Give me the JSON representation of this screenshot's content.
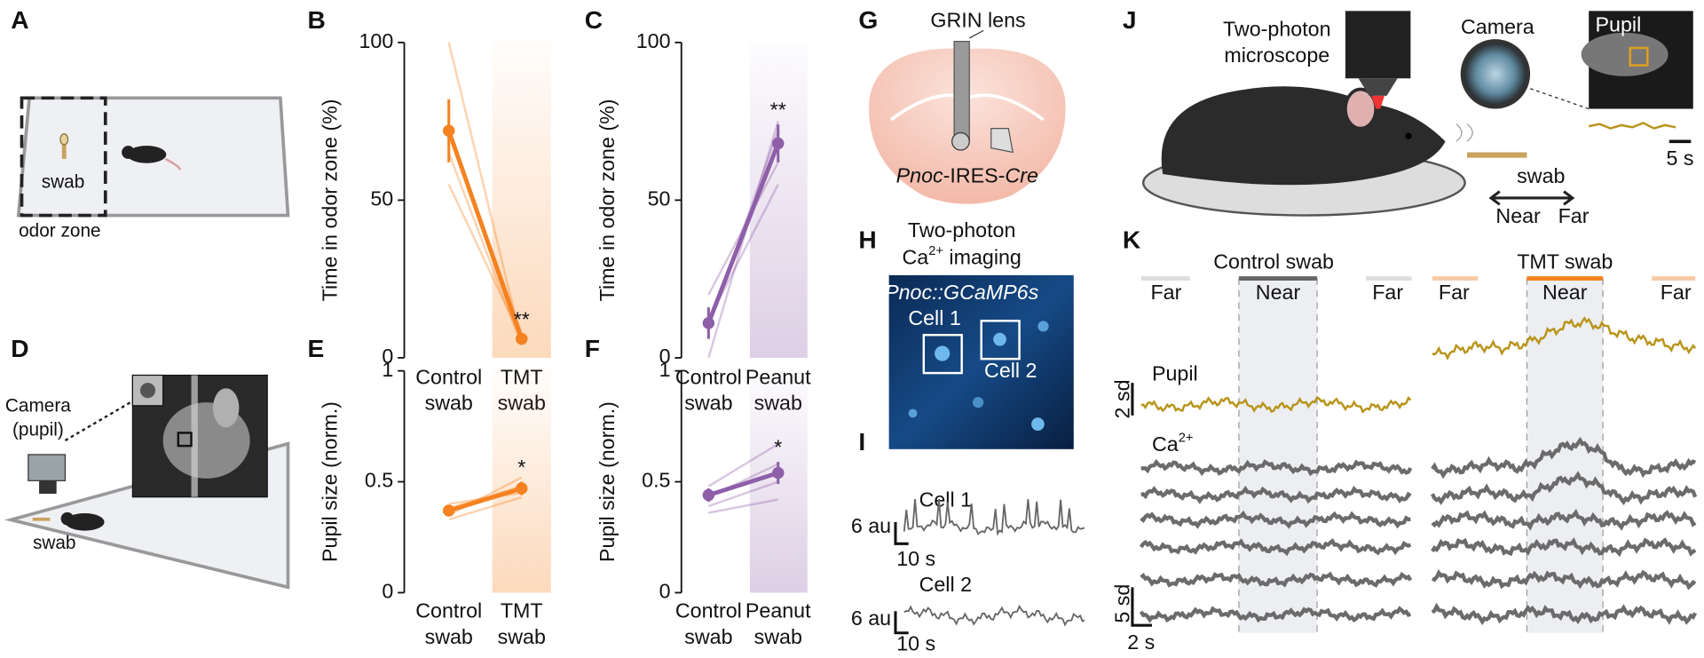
{
  "figure": {
    "panel_labels": [
      "A",
      "B",
      "C",
      "D",
      "E",
      "F",
      "G",
      "H",
      "I",
      "J",
      "K"
    ],
    "A": {
      "swab": "swab",
      "odor_zone": "odor zone"
    },
    "D": {
      "camera": [
        "Camera",
        "(pupil)"
      ],
      "swab": "swab"
    },
    "G": {
      "grin_lens": "GRIN lens",
      "line": [
        "Pnoc",
        "-IRES-",
        "Cre"
      ]
    },
    "H": {
      "title": "Two-photon",
      "subtitle": [
        "Ca",
        "2+",
        " imaging"
      ],
      "reporter": "Pnoc::GCaMP6s",
      "cells": [
        "Cell 1",
        "Cell 2"
      ]
    },
    "I": {
      "cells": [
        "Cell 1",
        "Cell 2"
      ],
      "scale_y": "6 au",
      "scale_x": "10 s"
    },
    "J": {
      "microscope": [
        "Two-photon",
        "microscope"
      ],
      "camera": "Camera",
      "pupil": "Pupil",
      "scale_x": "5 s",
      "swab": "swab",
      "near": "Near",
      "far": "Far"
    },
    "K": {
      "conditions": [
        "Control swab",
        "TMT swab"
      ],
      "far": "Far",
      "near": "Near",
      "pupil": "Pupil",
      "calcium": [
        "Ca",
        "2+"
      ],
      "pupil_scale": "2 sd",
      "calcium_scale": "5 sd",
      "time_scale": "2 s"
    }
  },
  "chart_data": [
    {
      "type": "line",
      "ylabel": "Time in odor zone (%)",
      "categories": [
        [
          "Control",
          "swab"
        ],
        [
          "TMT",
          "swab"
        ]
      ],
      "color": "#f58220",
      "values": [
        72,
        6
      ],
      "errors": [
        10,
        1.5
      ],
      "subjects": [
        [
          100,
          5
        ],
        [
          72,
          8
        ],
        [
          65,
          4
        ],
        [
          55,
          6
        ]
      ],
      "significance": "**",
      "ylim": [
        0,
        100
      ],
      "yticks": [
        0,
        50,
        100
      ]
    },
    {
      "type": "line",
      "ylabel": "Time in odor zone (%)",
      "categories": [
        [
          "Control",
          "swab"
        ],
        [
          "Peanut",
          "swab"
        ]
      ],
      "color": "#8e5fa8",
      "values": [
        11,
        68
      ],
      "errors": [
        5,
        6
      ],
      "subjects": [
        [
          0,
          75
        ],
        [
          10,
          72
        ],
        [
          20,
          62
        ],
        [
          12,
          55
        ]
      ],
      "significance": "**",
      "ylim": [
        0,
        100
      ],
      "yticks": [
        0,
        50,
        100
      ]
    },
    {
      "type": "line",
      "ylabel": "Pupil size (norm.)",
      "categories": [
        [
          "Control",
          "swab"
        ],
        [
          "TMT",
          "swab"
        ]
      ],
      "color": "#f58220",
      "values": [
        0.37,
        0.47
      ],
      "errors": [
        0.02,
        0.03
      ],
      "subjects": [
        [
          0.35,
          0.52
        ],
        [
          0.38,
          0.48
        ],
        [
          0.4,
          0.45
        ],
        [
          0.33,
          0.43
        ]
      ],
      "significance": "*",
      "ylim": [
        0,
        1
      ],
      "yticks": [
        0,
        0.5,
        1
      ]
    },
    {
      "type": "line",
      "ylabel": "Pupil size (norm.)",
      "categories": [
        [
          "Control",
          "swab"
        ],
        [
          "Peanut",
          "swab"
        ]
      ],
      "color": "#8e5fa8",
      "values": [
        0.44,
        0.54
      ],
      "errors": [
        0.03,
        0.05
      ],
      "subjects": [
        [
          0.48,
          0.67
        ],
        [
          0.43,
          0.58
        ],
        [
          0.36,
          0.42
        ],
        [
          0.39,
          0.5
        ]
      ],
      "significance": "*",
      "ylim": [
        0,
        1
      ],
      "yticks": [
        0,
        0.5,
        1
      ]
    }
  ]
}
